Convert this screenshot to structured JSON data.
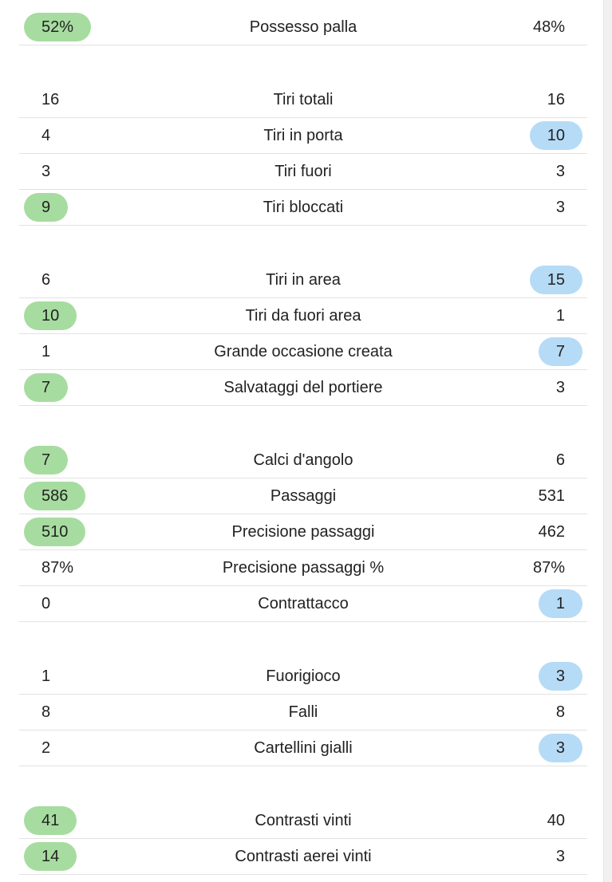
{
  "colors": {
    "home_highlight": "#a7dca0",
    "away_highlight": "#b6dbf6"
  },
  "groups": [
    {
      "rows": [
        {
          "label": "Possesso palla",
          "home": "52%",
          "away": "48%",
          "highlight": "home"
        }
      ]
    },
    {
      "rows": [
        {
          "label": "Tiri totali",
          "home": "16",
          "away": "16",
          "highlight": "none"
        },
        {
          "label": "Tiri in porta",
          "home": "4",
          "away": "10",
          "highlight": "away"
        },
        {
          "label": "Tiri fuori",
          "home": "3",
          "away": "3",
          "highlight": "none"
        },
        {
          "label": "Tiri bloccati",
          "home": "9",
          "away": "3",
          "highlight": "home"
        }
      ]
    },
    {
      "rows": [
        {
          "label": "Tiri in area",
          "home": "6",
          "away": "15",
          "highlight": "away"
        },
        {
          "label": "Tiri da fuori area",
          "home": "10",
          "away": "1",
          "highlight": "home"
        },
        {
          "label": "Grande occasione creata",
          "home": "1",
          "away": "7",
          "highlight": "away"
        },
        {
          "label": "Salvataggi del portiere",
          "home": "7",
          "away": "3",
          "highlight": "home"
        }
      ]
    },
    {
      "rows": [
        {
          "label": "Calci d'angolo",
          "home": "7",
          "away": "6",
          "highlight": "home"
        },
        {
          "label": "Passaggi",
          "home": "586",
          "away": "531",
          "highlight": "home"
        },
        {
          "label": "Precisione passaggi",
          "home": "510",
          "away": "462",
          "highlight": "home"
        },
        {
          "label": "Precisione passaggi %",
          "home": "87%",
          "away": "87%",
          "highlight": "none"
        },
        {
          "label": "Contrattacco",
          "home": "0",
          "away": "1",
          "highlight": "away"
        }
      ]
    },
    {
      "rows": [
        {
          "label": "Fuorigioco",
          "home": "1",
          "away": "3",
          "highlight": "away"
        },
        {
          "label": "Falli",
          "home": "8",
          "away": "8",
          "highlight": "none"
        },
        {
          "label": "Cartellini gialli",
          "home": "2",
          "away": "3",
          "highlight": "away"
        }
      ]
    },
    {
      "rows": [
        {
          "label": "Contrasti vinti",
          "home": "41",
          "away": "40",
          "highlight": "home"
        },
        {
          "label": "Contrasti aerei vinti",
          "home": "14",
          "away": "3",
          "highlight": "home"
        }
      ]
    }
  ]
}
